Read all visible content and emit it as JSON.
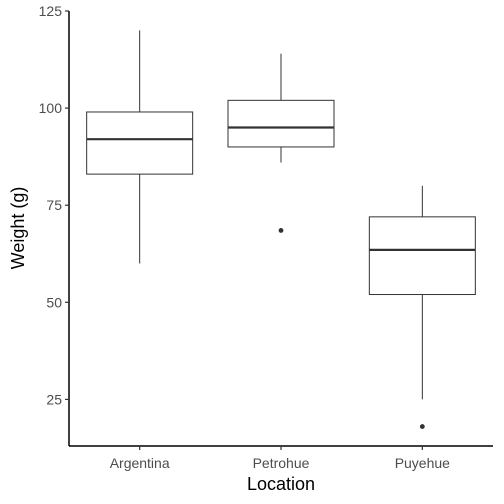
{
  "chart_data": {
    "type": "boxplot",
    "title": "",
    "xlabel": "Location",
    "ylabel": "Weight (g)",
    "ylim": [
      13,
      125
    ],
    "yticks": [
      25,
      50,
      75,
      100,
      125
    ],
    "ytick_labels": [
      "25",
      "50",
      "75",
      "100",
      "125"
    ],
    "categories": [
      "Argentina",
      "Petrohue",
      "Puyehue"
    ],
    "boxes": [
      {
        "category": "Argentina",
        "whisker_low": 60,
        "q1": 83,
        "median": 92,
        "q3": 99,
        "whisker_high": 120,
        "outliers": []
      },
      {
        "category": "Petrohue",
        "whisker_low": 86,
        "q1": 90,
        "median": 95,
        "q3": 102,
        "whisker_high": 114,
        "outliers": [
          68.5
        ]
      },
      {
        "category": "Puyehue",
        "whisker_low": 25,
        "q1": 52,
        "median": 63.5,
        "q3": 72,
        "whisker_high": 80,
        "outliers": [
          18
        ]
      }
    ],
    "grid": false,
    "legend": "none"
  }
}
